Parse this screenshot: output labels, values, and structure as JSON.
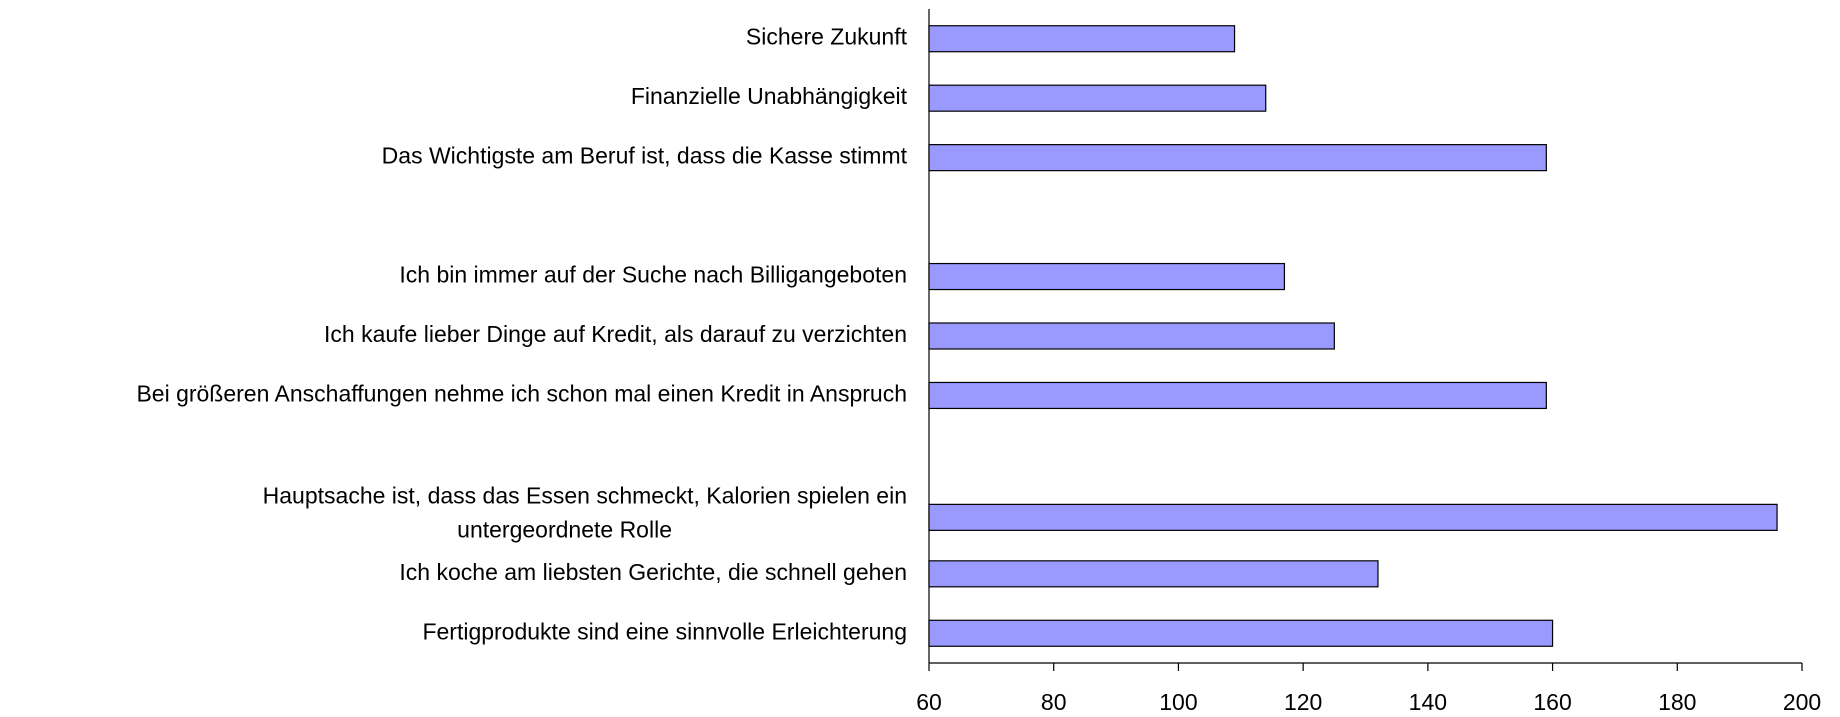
{
  "chart_data": {
    "type": "barh",
    "categories": [
      "Sichere Zukunft",
      "Finanzielle Unabhängigkeit",
      "Das Wichtigste am Beruf ist, dass die Kasse stimmt",
      null,
      "Ich bin immer auf der Suche nach Billigangeboten",
      "Ich kaufe lieber Dinge auf Kredit, als darauf zu verzichten",
      "Bei größeren Anschaffungen nehme ich schon mal einen Kredit in Anspruch",
      null,
      "Hauptsache ist, dass das Essen schmeckt, Kalorien spielen ein\nuntergeordnete Rolle",
      "Ich koche am liebsten Gerichte, die schnell gehen",
      "Fertigprodukte sind eine sinnvolle Erleichterung"
    ],
    "values": [
      109,
      114,
      159,
      null,
      117,
      125,
      159,
      null,
      196,
      132,
      160
    ],
    "color": "#9999ff",
    "xlim": [
      60,
      200
    ],
    "xticks": [
      60,
      80,
      100,
      120,
      140,
      160,
      180,
      200
    ],
    "grid": false
  }
}
